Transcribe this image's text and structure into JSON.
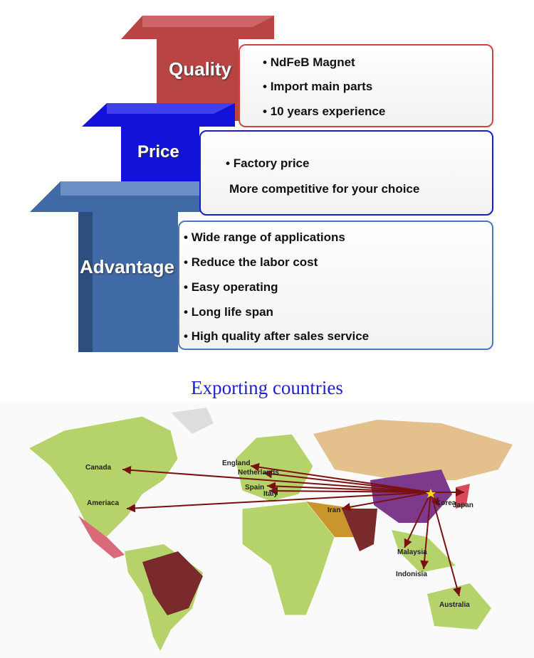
{
  "tiers": [
    {
      "label": "Quality",
      "color": "#b84444",
      "items": [
        "NdFeB Magnet",
        "Import main parts",
        "10 years experience"
      ]
    },
    {
      "label": "Price",
      "color": "#1212d8",
      "items": [
        "Factory price",
        "More competitive for your choice"
      ]
    },
    {
      "label": "Advantage",
      "color": "#3f6aa6",
      "items": [
        "Wide range of applications",
        "Reduce the labor cost",
        "Easy operating",
        "Long life span",
        "High quality after sales service"
      ]
    }
  ],
  "map": {
    "title": "Exporting countries",
    "origin": "China",
    "destinations": [
      "Canada",
      "Ameriaca",
      "England",
      "Netherlands",
      "Spain",
      "Italy",
      "Iran",
      "Korea",
      "Japan",
      "Malaysia",
      "Indonisia",
      "Australia"
    ],
    "arrow_color": "#7a1010"
  }
}
